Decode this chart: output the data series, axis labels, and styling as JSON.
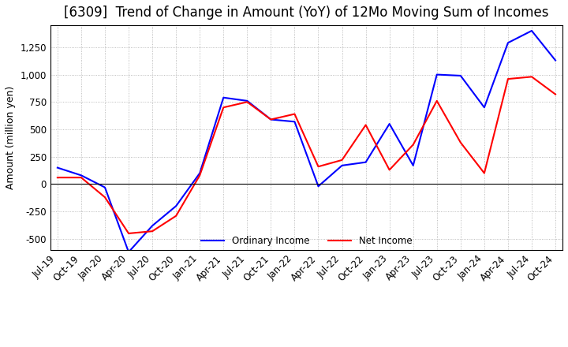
{
  "title": "[6309]  Trend of Change in Amount (YoY) of 12Mo Moving Sum of Incomes",
  "ylabel": "Amount (million yen)",
  "ylim": [
    -600,
    1450
  ],
  "yticks": [
    -500,
    -250,
    0,
    250,
    500,
    750,
    1000,
    1250
  ],
  "x_labels": [
    "Jul-19",
    "Oct-19",
    "Jan-20",
    "Apr-20",
    "Jul-20",
    "Oct-20",
    "Jan-21",
    "Apr-21",
    "Jul-21",
    "Oct-21",
    "Jan-22",
    "Apr-22",
    "Jul-22",
    "Oct-22",
    "Jan-23",
    "Apr-23",
    "Jul-23",
    "Oct-23",
    "Jan-24",
    "Apr-24",
    "Jul-24",
    "Oct-24"
  ],
  "ordinary_income": [
    150,
    80,
    -30,
    -620,
    -380,
    -200,
    100,
    790,
    760,
    590,
    570,
    -20,
    170,
    200,
    550,
    170,
    1000,
    990,
    700,
    1290,
    1400,
    1130
  ],
  "net_income": [
    60,
    60,
    -120,
    -450,
    -430,
    -290,
    80,
    700,
    750,
    590,
    640,
    160,
    220,
    540,
    130,
    360,
    760,
    380,
    100,
    960,
    980,
    820
  ],
  "ordinary_color": "#0000ff",
  "net_color": "#ff0000",
  "grid_color": "#aaaaaa",
  "background_color": "#ffffff",
  "title_fontsize": 12,
  "axis_fontsize": 9,
  "tick_fontsize": 8.5
}
